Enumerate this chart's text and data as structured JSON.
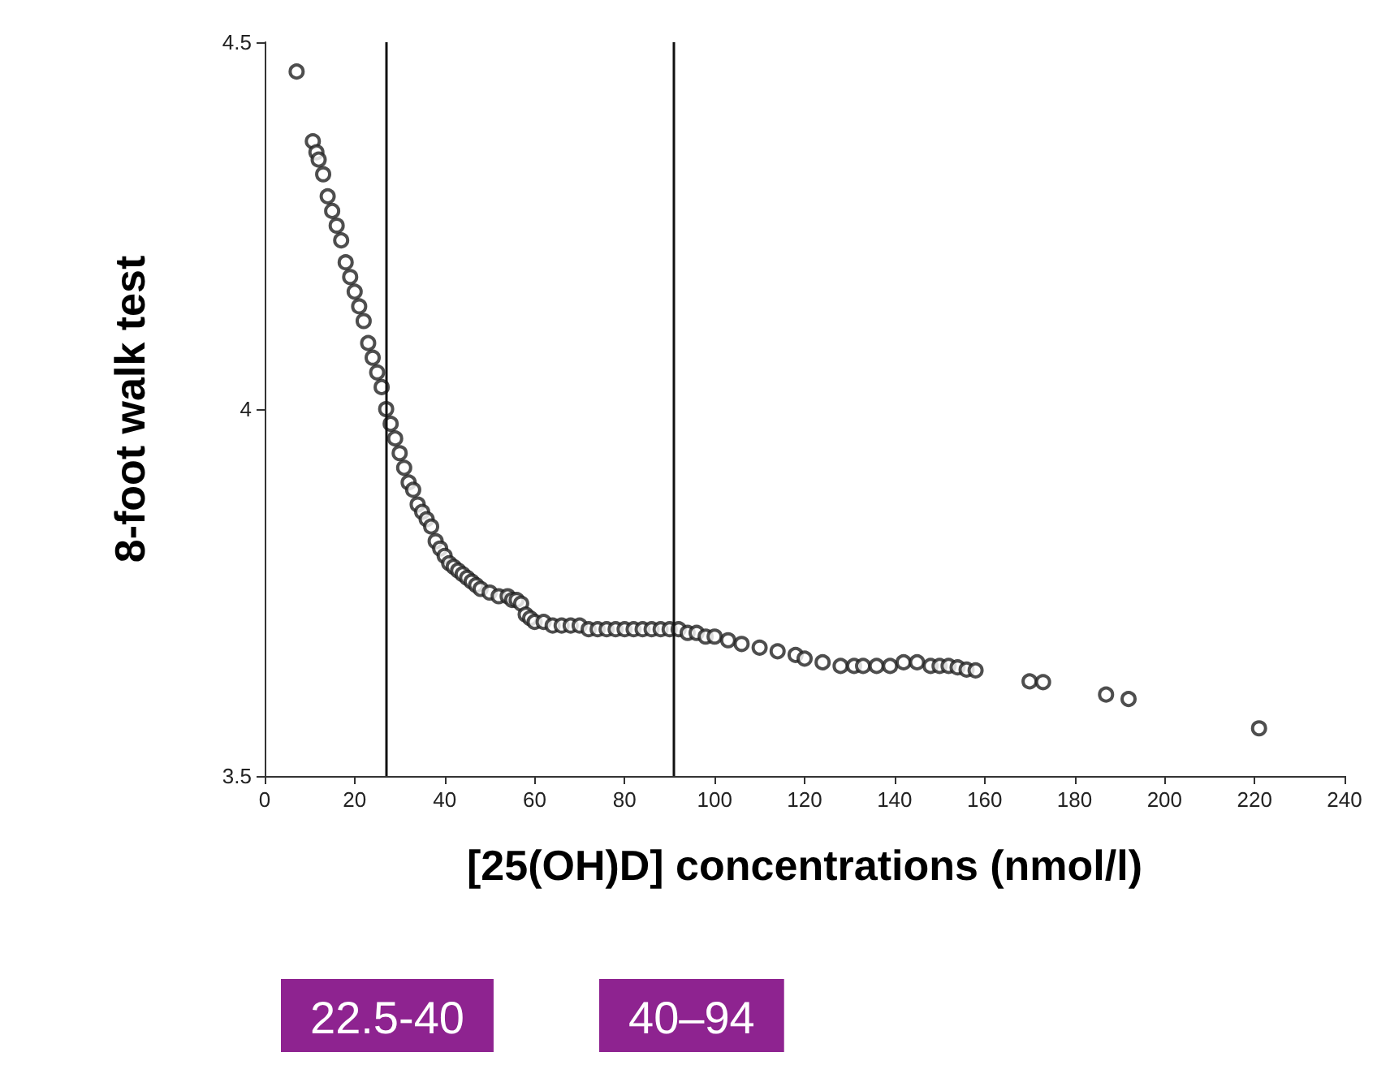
{
  "chart_data": {
    "type": "scatter",
    "xlabel": "[25(OH)D] concentrations (nmol/l)",
    "ylabel": "8-foot walk test",
    "marker": "circle",
    "series": [
      {
        "color": "#222222",
        "x": [
          7.1,
          10.7,
          11.5,
          12,
          13,
          14,
          15,
          16,
          17,
          18,
          19,
          20,
          21,
          22,
          23,
          24,
          25,
          26,
          27,
          28,
          29,
          30,
          31,
          32,
          33,
          34,
          35,
          36,
          37,
          38,
          39,
          40,
          41,
          42,
          43,
          44,
          45,
          46,
          47,
          48,
          50,
          52,
          54,
          55,
          56,
          57,
          58,
          59,
          60,
          62,
          64,
          66,
          68,
          70,
          72,
          74,
          76,
          78,
          80,
          82,
          84,
          86,
          88,
          90,
          92,
          94,
          96,
          98,
          100,
          103,
          106,
          110,
          114,
          118,
          120,
          124,
          128,
          131,
          133,
          136,
          139,
          142,
          145,
          148,
          150,
          152,
          154,
          156,
          158,
          170,
          173,
          187,
          192,
          221
        ],
        "values": [
          4.46,
          4.365,
          4.35,
          4.34,
          4.32,
          4.29,
          4.27,
          4.25,
          4.23,
          4.2,
          4.18,
          4.16,
          4.14,
          4.12,
          4.09,
          4.07,
          4.05,
          4.03,
          4.0,
          3.98,
          3.96,
          3.94,
          3.92,
          3.9,
          3.89,
          3.87,
          3.86,
          3.85,
          3.84,
          3.82,
          3.81,
          3.8,
          3.79,
          3.785,
          3.78,
          3.775,
          3.77,
          3.765,
          3.76,
          3.755,
          3.75,
          3.745,
          3.745,
          3.74,
          3.74,
          3.735,
          3.72,
          3.715,
          3.71,
          3.71,
          3.705,
          3.705,
          3.705,
          3.705,
          3.7,
          3.7,
          3.7,
          3.7,
          3.7,
          3.7,
          3.7,
          3.7,
          3.7,
          3.7,
          3.7,
          3.695,
          3.695,
          3.69,
          3.69,
          3.685,
          3.68,
          3.675,
          3.67,
          3.665,
          3.66,
          3.655,
          3.65,
          3.65,
          3.65,
          3.65,
          3.65,
          3.655,
          3.655,
          3.65,
          3.65,
          3.65,
          3.648,
          3.645,
          3.644,
          3.629,
          3.628,
          3.611,
          3.605,
          3.565
        ]
      }
    ],
    "xlim": [
      0,
      240
    ],
    "xticks": [
      0,
      20,
      40,
      60,
      80,
      100,
      120,
      140,
      160,
      180,
      200,
      220,
      240
    ],
    "ylim": [
      3.5,
      4.5
    ],
    "yticks": [
      3.5,
      4,
      4.5
    ],
    "ref_lines": [
      {
        "axis": "x",
        "value": 27,
        "color": "#111111"
      },
      {
        "axis": "x",
        "value": 91,
        "color": "#111111"
      }
    ],
    "annotations": [
      "22.5-40",
      "40–94"
    ]
  }
}
